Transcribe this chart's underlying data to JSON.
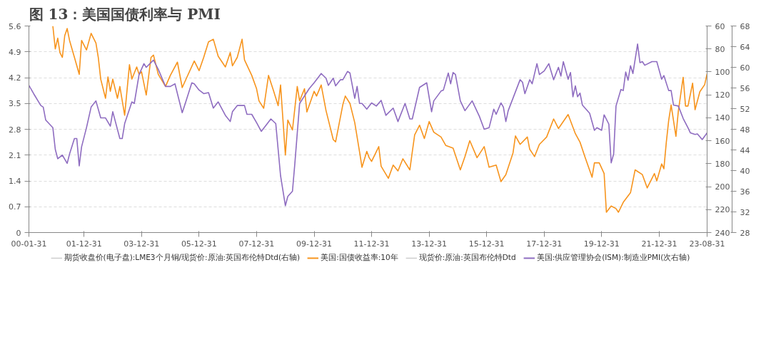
{
  "chart_data": {
    "type": "line",
    "title": "图 13：美国国债利率与 PMI",
    "xlim": [
      "2000-01-31",
      "2023-08-31"
    ],
    "xticks": [
      {
        "value": "2000-01-31",
        "label": "00-01-31"
      },
      {
        "value": "2001-12-31",
        "label": "01-12-31"
      },
      {
        "value": "2003-12-31",
        "label": "03-12-31"
      },
      {
        "value": "2005-12-31",
        "label": "05-12-31"
      },
      {
        "value": "2007-12-31",
        "label": "07-12-31"
      },
      {
        "value": "2009-12-31",
        "label": "09-12-31"
      },
      {
        "value": "2011-12-31",
        "label": "11-12-31"
      },
      {
        "value": "2013-12-31",
        "label": "13-12-31"
      },
      {
        "value": "2015-12-31",
        "label": "15-12-31"
      },
      {
        "value": "2017-12-31",
        "label": "17-12-31"
      },
      {
        "value": "2019-12-31",
        "label": "19-12-31"
      },
      {
        "value": "2021-12-31",
        "label": "21-12-31"
      },
      {
        "value": "2023-08-31",
        "label": "23-08-31"
      }
    ],
    "ylim": [
      0,
      5.6
    ],
    "yticks": [
      0,
      0.7,
      1.4,
      2.1,
      2.8,
      3.5,
      4.2,
      4.9,
      5.6
    ],
    "y2lim": [
      240,
      60
    ],
    "y2ticks": [
      60,
      80,
      100,
      120,
      140,
      160,
      180,
      200,
      220,
      240
    ],
    "y3lim": [
      28,
      68
    ],
    "y3ticks": [
      28,
      32,
      36,
      40,
      44,
      48,
      52,
      56,
      60,
      64,
      68
    ],
    "grid": "y",
    "legend": "bottom",
    "series": [
      {
        "name": "期货收盘价(电子盘):LME3个月铜/现货价:原油:英国布伦特Dtd(右轴)",
        "color": "#cccccc",
        "axis": "y2"
      },
      {
        "name": "美国:国债收益率:10年",
        "color": "#f7941d",
        "x": [
          "2000-11",
          "2000-12",
          "2001-01",
          "2001-02",
          "2001-03",
          "2001-04",
          "2001-05",
          "2001-06",
          "2001-08",
          "2001-10",
          "2001-11",
          "2002-01",
          "2002-03",
          "2002-05",
          "2002-06",
          "2002-07",
          "2002-09",
          "2002-10",
          "2002-11",
          "2002-12",
          "2003-02",
          "2003-03",
          "2003-05",
          "2003-07",
          "2003-08",
          "2003-10",
          "2003-11",
          "2003-12",
          "2004-02",
          "2004-04",
          "2004-05",
          "2004-07",
          "2004-10",
          "2004-12",
          "2005-03",
          "2005-05",
          "2005-07",
          "2005-10",
          "2005-12",
          "2006-02",
          "2006-04",
          "2006-06",
          "2006-08",
          "2006-11",
          "2007-01",
          "2007-02",
          "2007-04",
          "2007-06",
          "2007-07",
          "2007-10",
          "2007-12",
          "2008-01",
          "2008-03",
          "2008-05",
          "2008-07",
          "2008-09",
          "2008-10",
          "2008-12",
          "2009-01",
          "2009-03",
          "2009-05",
          "2009-06",
          "2009-08",
          "2009-09",
          "2009-12",
          "2010-01",
          "2010-03",
          "2010-05",
          "2010-08",
          "2010-09",
          "2010-12",
          "2011-01",
          "2011-03",
          "2011-05",
          "2011-07",
          "2011-08",
          "2011-10",
          "2011-11",
          "2011-12",
          "2012-03",
          "2012-04",
          "2012-07",
          "2012-09",
          "2012-11",
          "2013-01",
          "2013-04",
          "2013-05",
          "2013-06",
          "2013-08",
          "2013-10",
          "2013-12",
          "2014-02",
          "2014-05",
          "2014-07",
          "2014-10",
          "2015-01",
          "2015-03",
          "2015-05",
          "2015-08",
          "2015-11",
          "2016-01",
          "2016-04",
          "2016-06",
          "2016-08",
          "2016-11",
          "2016-12",
          "2017-02",
          "2017-05",
          "2017-06",
          "2017-08",
          "2017-10",
          "2018-01",
          "2018-04",
          "2018-06",
          "2018-10",
          "2019-01",
          "2019-03",
          "2019-05",
          "2019-08",
          "2019-09",
          "2019-11",
          "2020-01",
          "2020-02",
          "2020-04",
          "2020-06",
          "2020-07",
          "2020-09",
          "2020-12",
          "2021-02",
          "2021-05",
          "2021-07",
          "2021-10",
          "2021-11",
          "2022-01",
          "2022-02",
          "2022-03",
          "2022-04",
          "2022-05",
          "2022-07",
          "2022-08",
          "2022-10",
          "2022-11",
          "2022-12",
          "2023-02",
          "2023-03",
          "2023-05",
          "2023-07",
          "2023-08"
        ],
        "values": [
          5.6,
          4.98,
          5.27,
          4.88,
          4.75,
          5.34,
          5.53,
          5.21,
          4.75,
          4.29,
          5.21,
          4.95,
          5.4,
          5.14,
          4.75,
          4.16,
          3.64,
          4.22,
          3.83,
          4.16,
          3.64,
          3.96,
          3.18,
          4.55,
          4.16,
          4.49,
          4.29,
          4.36,
          3.73,
          4.75,
          4.81,
          4.29,
          3.96,
          4.26,
          4.62,
          3.93,
          4.22,
          4.65,
          4.39,
          4.75,
          5.17,
          5.24,
          4.78,
          4.49,
          4.88,
          4.52,
          4.75,
          5.24,
          4.68,
          4.26,
          3.9,
          3.57,
          3.37,
          4.26,
          3.86,
          3.44,
          4.0,
          2.1,
          3.05,
          2.78,
          3.96,
          3.57,
          3.9,
          3.27,
          3.83,
          3.7,
          4.0,
          3.31,
          2.52,
          2.46,
          3.47,
          3.7,
          3.5,
          2.98,
          2.19,
          1.77,
          2.2,
          2.03,
          1.93,
          2.33,
          1.8,
          1.47,
          1.83,
          1.67,
          2.0,
          1.7,
          2.19,
          2.65,
          2.91,
          2.55,
          3.01,
          2.72,
          2.59,
          2.36,
          2.29,
          1.7,
          2.06,
          2.49,
          2.03,
          2.33,
          1.77,
          1.83,
          1.38,
          1.57,
          2.16,
          2.62,
          2.39,
          2.59,
          2.26,
          2.06,
          2.39,
          2.59,
          3.08,
          2.82,
          3.2,
          2.68,
          2.45,
          2.06,
          1.5,
          1.89,
          1.89,
          1.6,
          0.55,
          0.72,
          0.65,
          0.55,
          0.82,
          1.08,
          1.7,
          1.57,
          1.21,
          1.6,
          1.4,
          1.86,
          1.73,
          2.45,
          3.04,
          3.46,
          2.61,
          3.3,
          4.21,
          3.43,
          3.43,
          4.05,
          3.33,
          3.82,
          4.01,
          4.31
        ]
      },
      {
        "name": "现货价:原油:英国布伦特Dtd",
        "color": "#cccccc"
      },
      {
        "name": "美国:供应管理协会(ISM):制造业PMI(次右轴)",
        "color": "#8e6cc0",
        "axis": "y3",
        "x": [
          "2000-01-31",
          "2000-03",
          "2000-06",
          "2000-07",
          "2000-08",
          "2000-11",
          "2000-12",
          "2001-01",
          "2001-03",
          "2001-05",
          "2001-06",
          "2001-08",
          "2001-09",
          "2001-10",
          "2001-11",
          "2002-01",
          "2002-03",
          "2002-05",
          "2002-07",
          "2002-09",
          "2002-11",
          "2002-12",
          "2003-03",
          "2003-04",
          "2003-05",
          "2003-08",
          "2003-09",
          "2003-11",
          "2004-01",
          "2004-02",
          "2004-05",
          "2004-07",
          "2004-10",
          "2004-12",
          "2005-02",
          "2005-05",
          "2005-06",
          "2005-09",
          "2005-10",
          "2005-12",
          "2006-02",
          "2006-04",
          "2006-06",
          "2006-08",
          "2006-11",
          "2007-01",
          "2007-02",
          "2007-04",
          "2007-07",
          "2007-08",
          "2007-10",
          "2007-12",
          "2008-02",
          "2008-04",
          "2008-06",
          "2008-08",
          "2008-10",
          "2008-12",
          "2009-01",
          "2009-03",
          "2009-04",
          "2009-06",
          "2009-10",
          "2009-12",
          "2010-03",
          "2010-05",
          "2010-06",
          "2010-08",
          "2010-09",
          "2010-11",
          "2010-12",
          "2011-02",
          "2011-03",
          "2011-05",
          "2011-06",
          "2011-07",
          "2011-08",
          "2011-10",
          "2011-12",
          "2012-02",
          "2012-04",
          "2012-06",
          "2012-09",
          "2012-11",
          "2013-02",
          "2013-04",
          "2013-05",
          "2013-08",
          "2013-11",
          "2014-01",
          "2014-02",
          "2014-05",
          "2014-06",
          "2014-08",
          "2014-09",
          "2014-10",
          "2014-11",
          "2015-01",
          "2015-03",
          "2015-06",
          "2015-09",
          "2015-11",
          "2016-01",
          "2016-03",
          "2016-04",
          "2016-06",
          "2016-07",
          "2016-08",
          "2016-09",
          "2017-02",
          "2017-03",
          "2017-04",
          "2017-06",
          "2017-07",
          "2017-09",
          "2017-10",
          "2017-12",
          "2018-02",
          "2018-04",
          "2018-06",
          "2018-07",
          "2018-08",
          "2018-10",
          "2018-11",
          "2018-12",
          "2019-01",
          "2019-02",
          "2019-03",
          "2019-04",
          "2019-07",
          "2019-09",
          "2019-10",
          "2019-12",
          "2020-01",
          "2020-03",
          "2020-04",
          "2020-05",
          "2020-06",
          "2020-08",
          "2020-09",
          "2020-10",
          "2020-11",
          "2020-12",
          "2021-01",
          "2021-03",
          "2021-04",
          "2021-05",
          "2021-06",
          "2021-09",
          "2021-11",
          "2022-01",
          "2022-02",
          "2022-04",
          "2022-05",
          "2022-06",
          "2022-08",
          "2022-10",
          "2022-12",
          "2023-01",
          "2023-03",
          "2023-04",
          "2023-06",
          "2023-08"
        ],
        "values": [
          56.5,
          54.9,
          52.6,
          52.3,
          49.8,
          48.3,
          44.1,
          42.3,
          43.0,
          41.4,
          43.2,
          46.2,
          46.2,
          40.9,
          44.6,
          48.3,
          52.3,
          53.5,
          50.2,
          50.2,
          48.6,
          51.4,
          46.2,
          46.2,
          49.1,
          53.3,
          53.0,
          58.6,
          60.7,
          60.0,
          61.4,
          59.6,
          56.3,
          56.3,
          56.8,
          51.2,
          52.6,
          57.0,
          56.8,
          55.6,
          54.9,
          55.1,
          52.1,
          53.3,
          50.7,
          49.5,
          51.4,
          52.6,
          52.6,
          50.9,
          50.9,
          49.3,
          47.6,
          48.8,
          50.0,
          49.1,
          39.0,
          33.2,
          35.0,
          36.0,
          41.3,
          53.0,
          55.9,
          57.0,
          58.8,
          57.9,
          56.5,
          57.9,
          56.4,
          57.6,
          57.6,
          59.2,
          58.9,
          54.0,
          56.3,
          53.0,
          53.0,
          51.9,
          53.1,
          52.5,
          53.6,
          50.7,
          52.1,
          49.5,
          53.0,
          50.0,
          50.0,
          56.1,
          57.0,
          51.4,
          53.5,
          55.4,
          55.6,
          58.9,
          56.8,
          59.0,
          58.6,
          53.5,
          51.6,
          53.5,
          50.5,
          48.0,
          48.3,
          51.9,
          50.9,
          53.1,
          52.3,
          49.5,
          51.6,
          57.6,
          57.1,
          54.9,
          57.6,
          56.8,
          60.7,
          58.6,
          59.3,
          60.7,
          57.6,
          60.0,
          58.3,
          61.1,
          57.7,
          59.0,
          54.3,
          56.4,
          54.3,
          55.0,
          52.7,
          51.1,
          47.8,
          48.3,
          47.8,
          50.8,
          49.0,
          41.5,
          43.2,
          52.5,
          55.7,
          55.5,
          59.1,
          57.5,
          60.3,
          58.8,
          64.5,
          60.9,
          61.1,
          60.4,
          61.1,
          61.1,
          57.7,
          58.4,
          55.5,
          55.5,
          52.7,
          52.5,
          50.1,
          48.3,
          47.3,
          47.0,
          47.1,
          46.0,
          47.3
        ]
      }
    ]
  }
}
